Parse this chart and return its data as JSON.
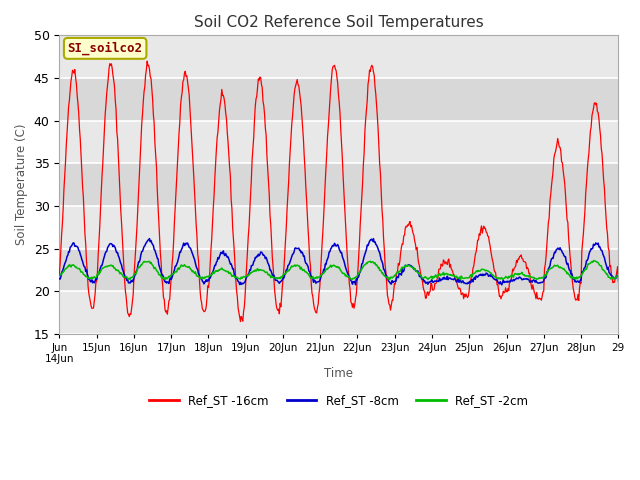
{
  "title": "Soil CO2 Reference Soil Temperatures",
  "ylabel": "Soil Temperature (C)",
  "xlabel": "Time",
  "ylim": [
    15,
    50
  ],
  "annotation_text": "SI_soilco2",
  "legend_labels": [
    "Ref_ST -16cm",
    "Ref_ST -8cm",
    "Ref_ST -2cm"
  ],
  "line_colors": [
    "#ff0000",
    "#0000cc",
    "#00bb00"
  ],
  "background_color": "#ffffff",
  "plot_bg_color": "#e8e8e8",
  "grid_color": "#ffffff",
  "band_colors": [
    "#e0e0e0",
    "#ebebeb"
  ],
  "red_peaks": [
    46.0,
    46.5,
    46.5,
    45.5,
    42.8,
    45.0,
    44.5,
    46.5,
    46.5,
    28.0,
    23.5,
    27.5,
    24.0,
    37.5,
    42.0,
    22.0
  ],
  "red_troughs": [
    18.0,
    17.0,
    17.5,
    17.5,
    16.5,
    17.5,
    17.5,
    18.0,
    18.0,
    19.5,
    19.5,
    19.5,
    19.0,
    19.0,
    21.0,
    21.0
  ],
  "blue_peaks": [
    25.5,
    25.5,
    26.0,
    25.5,
    24.5,
    24.5,
    25.0,
    25.5,
    26.0,
    23.0,
    21.5,
    22.0,
    21.5,
    25.0,
    25.5,
    24.0
  ],
  "blue_troughs": [
    21.0,
    21.0,
    21.0,
    21.0,
    20.8,
    21.0,
    21.0,
    21.0,
    21.0,
    21.0,
    21.0,
    21.0,
    21.0,
    21.0,
    21.5,
    21.5
  ],
  "green_peaks": [
    23.0,
    23.0,
    23.5,
    23.0,
    22.5,
    22.5,
    23.0,
    23.0,
    23.5,
    23.0,
    22.0,
    22.5,
    22.0,
    23.0,
    23.5,
    23.0
  ],
  "green_troughs": [
    21.5,
    21.5,
    21.5,
    21.5,
    21.5,
    21.5,
    21.5,
    21.5,
    21.5,
    21.5,
    21.5,
    21.5,
    21.5,
    21.5,
    21.5,
    21.5
  ]
}
